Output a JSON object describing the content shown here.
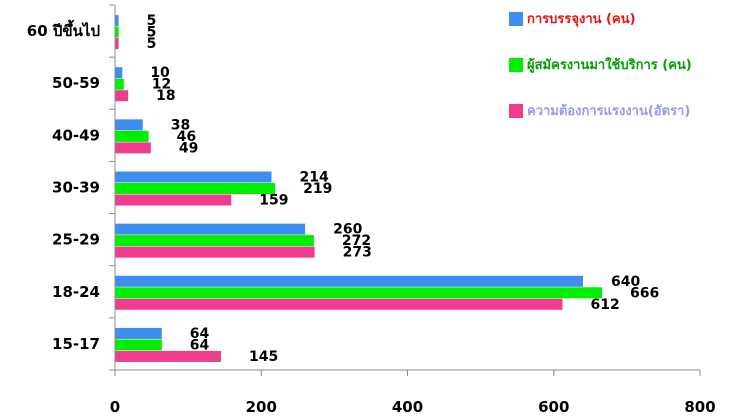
{
  "chart_data": {
    "type": "bar",
    "orientation": "horizontal",
    "categories": [
      "15-17",
      "18-24",
      "25-29",
      "30-39",
      "40-49",
      "50-59",
      "60 ปีขึ้นไป"
    ],
    "series": [
      {
        "name": "การบรรจุงาน (คน)",
        "color": "#3d8ef0",
        "values": [
          64,
          640,
          260,
          214,
          38,
          10,
          5
        ]
      },
      {
        "name": "ผู้สมัครงานมาใช้บริการ (คน)",
        "color": "#00ee00",
        "values": [
          64,
          666,
          272,
          219,
          46,
          12,
          5
        ]
      },
      {
        "name": "ความต้องการแรงงาน(อัตรา)",
        "color": "#ee3d8e",
        "values": [
          145,
          612,
          273,
          159,
          49,
          18,
          5
        ]
      }
    ],
    "xticks": [
      "0",
      "200",
      "400",
      "600",
      "800"
    ],
    "xlim": [
      0,
      800
    ],
    "legend_placement": "top-right",
    "legend_text_colors": [
      "#ee1111",
      "#00a000",
      "#9999ee"
    ],
    "grid": false
  }
}
